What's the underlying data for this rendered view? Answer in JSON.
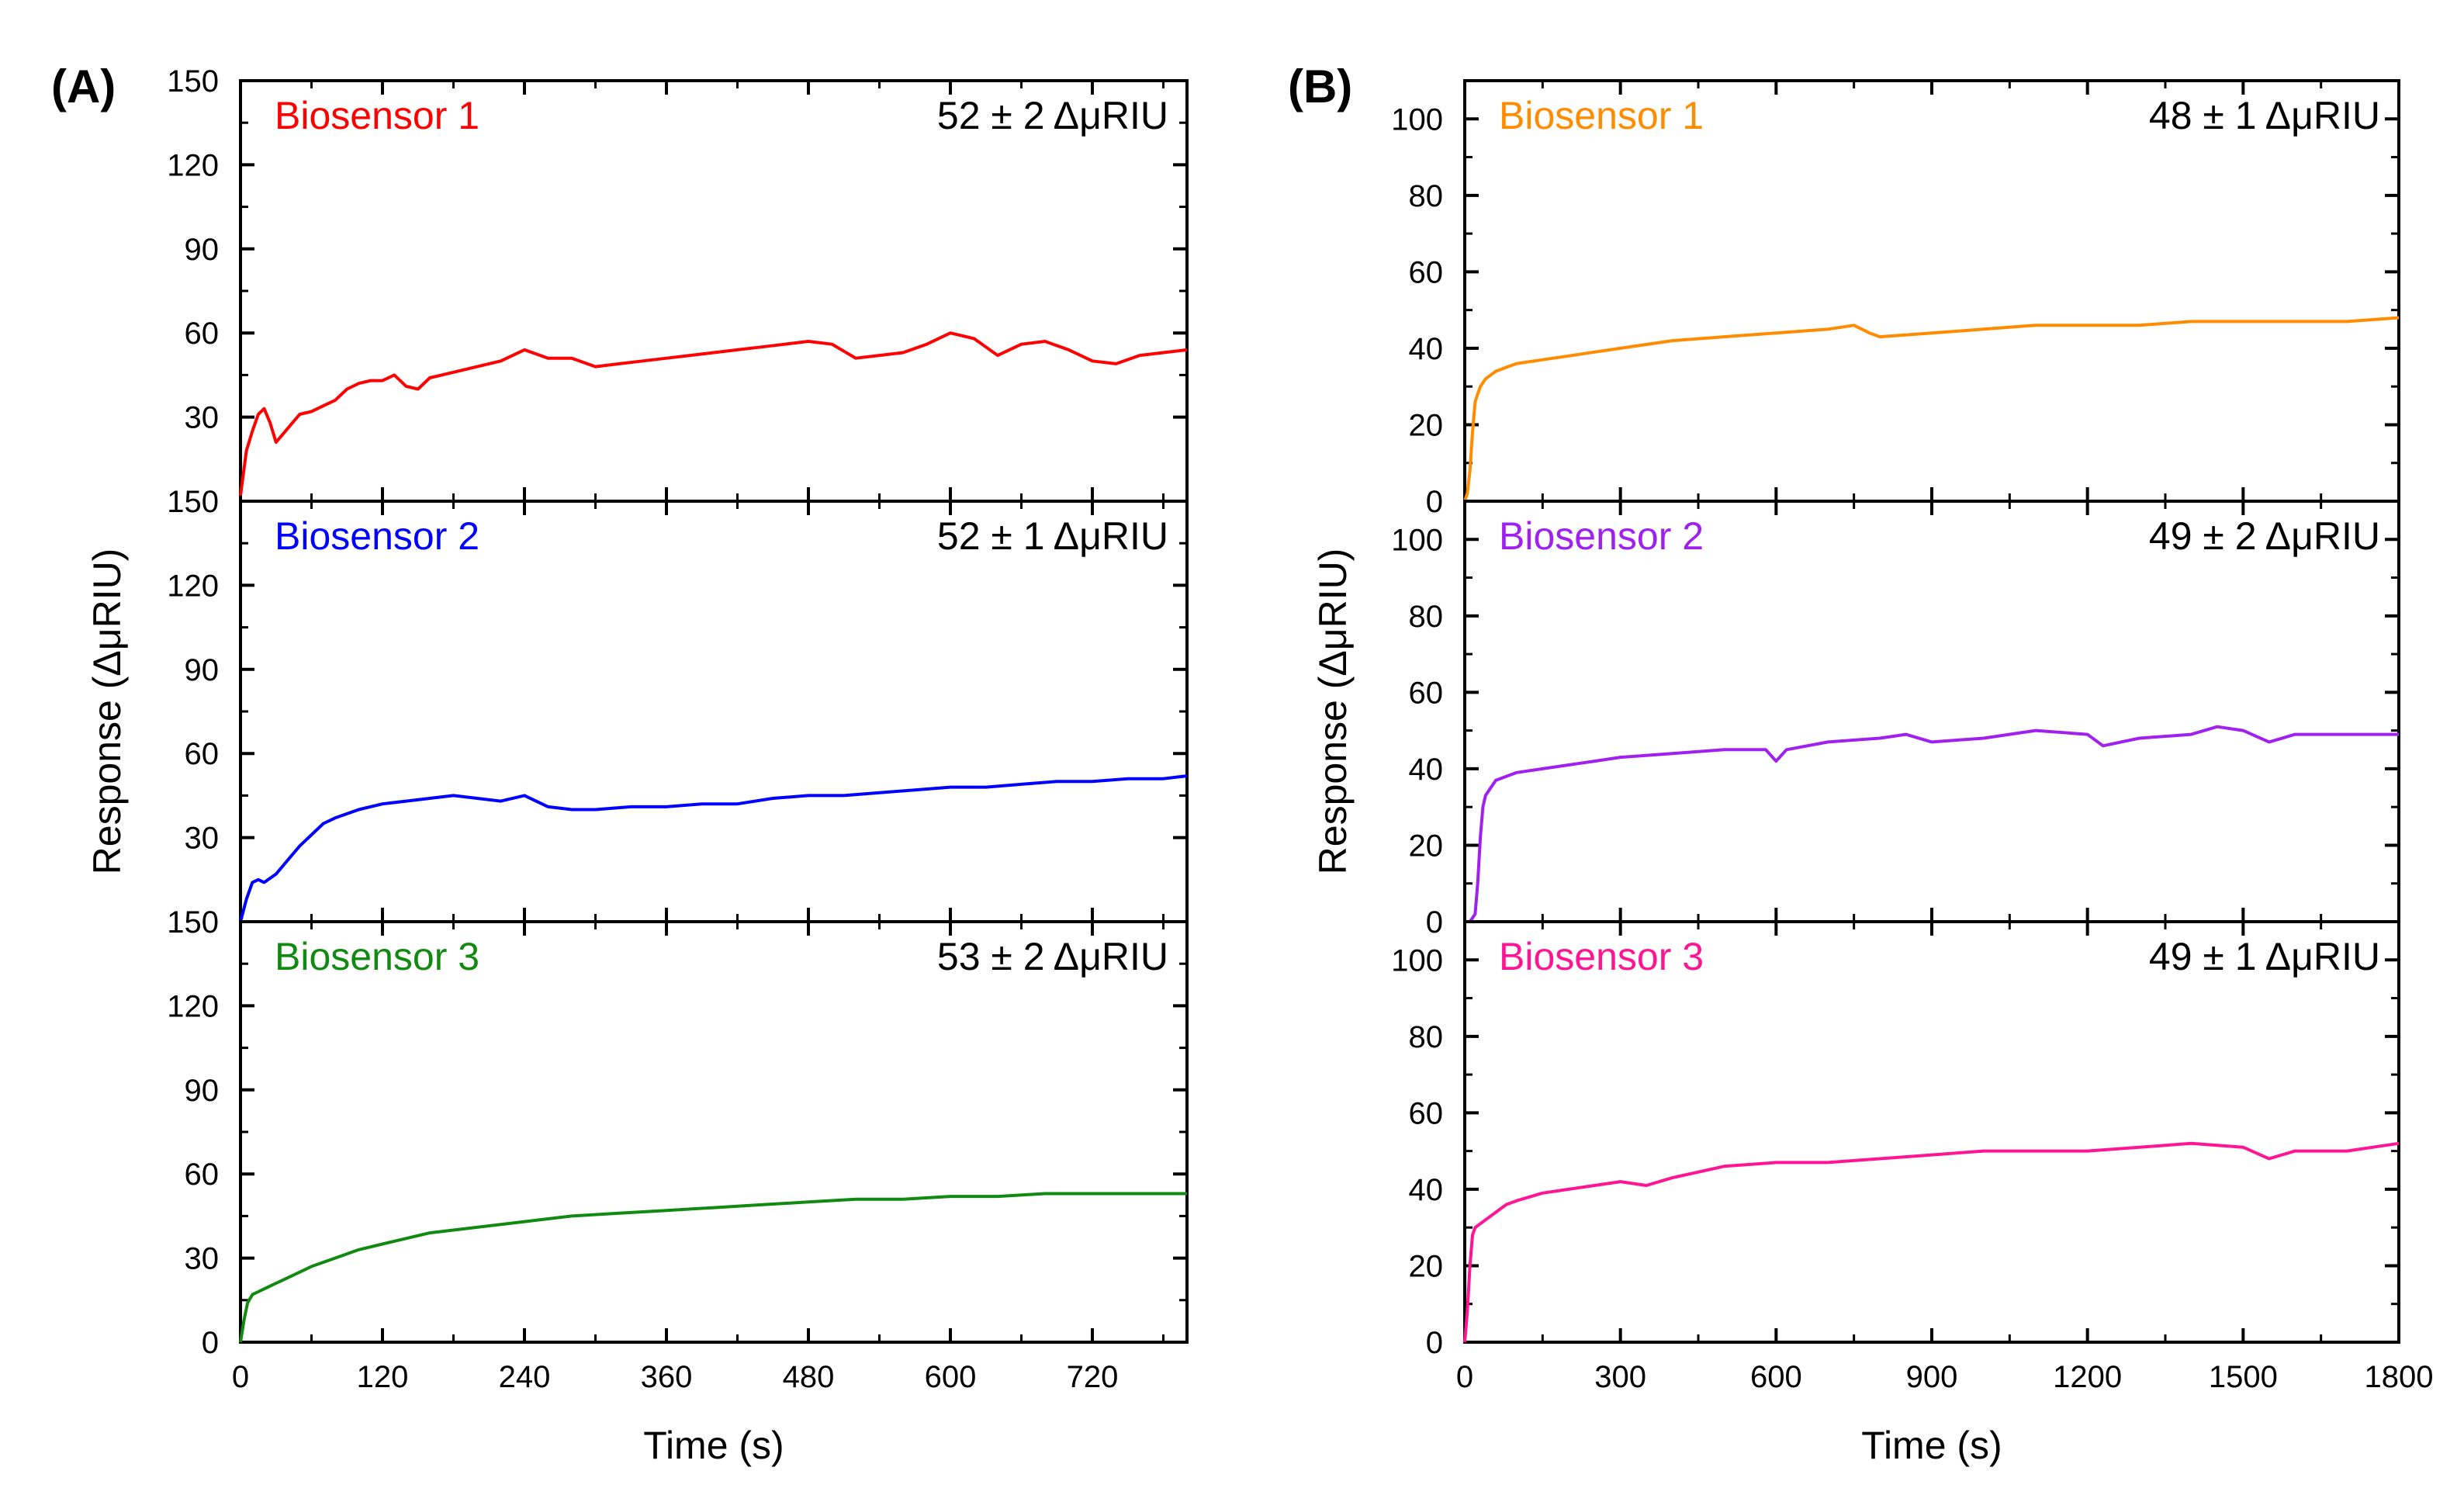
{
  "figure": {
    "panels": [
      "(A)",
      "(B)"
    ]
  },
  "chart_data": [
    {
      "panel": "(A)",
      "type": "line",
      "xlabel": "Time (s)",
      "ylabel": "Response (ΔμRIU)",
      "xlim": [
        0,
        800
      ],
      "xticks": [
        "0",
        "120",
        "240",
        "360",
        "480",
        "600",
        "720"
      ],
      "grid": false,
      "subplots": [
        {
          "series_name": "Biosensor 1",
          "color": "#ff0000",
          "annotation": "52 ± 2 ΔμRIU",
          "ylim": [
            0,
            150
          ],
          "yticks": [
            "150",
            "120",
            "90",
            "60",
            "30"
          ],
          "x": [
            0,
            5,
            10,
            15,
            20,
            25,
            30,
            40,
            50,
            60,
            70,
            80,
            90,
            100,
            110,
            120,
            130,
            140,
            150,
            160,
            170,
            180,
            200,
            220,
            240,
            260,
            280,
            300,
            320,
            340,
            360,
            380,
            400,
            420,
            440,
            460,
            480,
            500,
            520,
            540,
            560,
            580,
            600,
            620,
            640,
            660,
            680,
            700,
            720,
            740,
            760,
            780,
            800
          ],
          "y": [
            2,
            18,
            25,
            31,
            33,
            28,
            21,
            26,
            31,
            32,
            34,
            36,
            40,
            42,
            43,
            43,
            45,
            41,
            40,
            44,
            45,
            46,
            48,
            50,
            54,
            51,
            51,
            48,
            49,
            50,
            51,
            52,
            53,
            54,
            55,
            56,
            57,
            56,
            51,
            52,
            53,
            56,
            60,
            58,
            52,
            56,
            57,
            54,
            50,
            49,
            52,
            53,
            54
          ]
        },
        {
          "series_name": "Biosensor 2",
          "color": "#0000ff",
          "annotation": "52 ± 1 ΔμRIU",
          "ylim": [
            0,
            150
          ],
          "yticks": [
            "150",
            "120",
            "90",
            "60",
            "30"
          ],
          "x": [
            0,
            5,
            10,
            15,
            20,
            30,
            40,
            50,
            60,
            70,
            80,
            100,
            120,
            140,
            160,
            180,
            200,
            220,
            240,
            260,
            280,
            300,
            330,
            360,
            390,
            420,
            450,
            480,
            510,
            540,
            570,
            600,
            630,
            660,
            690,
            720,
            750,
            780,
            800
          ],
          "y": [
            0,
            8,
            14,
            15,
            14,
            17,
            22,
            27,
            31,
            35,
            37,
            40,
            42,
            43,
            44,
            45,
            44,
            43,
            45,
            41,
            40,
            40,
            41,
            41,
            42,
            42,
            44,
            45,
            45,
            46,
            47,
            48,
            48,
            49,
            50,
            50,
            51,
            51,
            52
          ]
        },
        {
          "series_name": "Biosensor 3",
          "color": "#108a10",
          "annotation": "53 ± 2 ΔμRIU",
          "ylim": [
            0,
            150
          ],
          "yticks": [
            "150",
            "120",
            "90",
            "60",
            "30",
            "0"
          ],
          "x": [
            0,
            3,
            6,
            10,
            15,
            20,
            30,
            40,
            50,
            60,
            80,
            100,
            120,
            140,
            160,
            180,
            200,
            240,
            280,
            320,
            360,
            400,
            440,
            480,
            520,
            560,
            600,
            640,
            680,
            720,
            760,
            800
          ],
          "y": [
            0,
            8,
            14,
            17,
            18,
            19,
            21,
            23,
            25,
            27,
            30,
            33,
            35,
            37,
            39,
            40,
            41,
            43,
            45,
            46,
            47,
            48,
            49,
            50,
            51,
            51,
            52,
            52,
            53,
            53,
            53,
            53
          ]
        }
      ]
    },
    {
      "panel": "(B)",
      "type": "line",
      "xlabel": "Time (s)",
      "ylabel": "Response (ΔμRIU)",
      "xlim": [
        0,
        1800
      ],
      "xticks": [
        "0",
        "300",
        "600",
        "900",
        "1200",
        "1500",
        "1800"
      ],
      "grid": false,
      "subplots": [
        {
          "series_name": "Biosensor 1",
          "color": "#ff8c00",
          "annotation": "48 ± 1 ΔμRIU",
          "ylim": [
            0,
            110
          ],
          "yticks": [
            "100",
            "80",
            "60",
            "40",
            "20",
            "0"
          ],
          "x": [
            0,
            5,
            10,
            15,
            20,
            25,
            30,
            40,
            60,
            80,
            100,
            150,
            200,
            250,
            300,
            400,
            500,
            600,
            700,
            750,
            780,
            800,
            900,
            1000,
            1100,
            1200,
            1300,
            1400,
            1500,
            1600,
            1700,
            1800
          ],
          "y": [
            0,
            2,
            8,
            18,
            26,
            28,
            30,
            32,
            34,
            35,
            36,
            37,
            38,
            39,
            40,
            42,
            43,
            44,
            45,
            46,
            44,
            43,
            44,
            45,
            46,
            46,
            46,
            47,
            47,
            47,
            47,
            48
          ]
        },
        {
          "series_name": "Biosensor 2",
          "color": "#a020f0",
          "annotation": "49 ± 2 ΔμRIU",
          "ylim": [
            0,
            110
          ],
          "yticks": [
            "100",
            "80",
            "60",
            "40",
            "20",
            "0"
          ],
          "x": [
            0,
            10,
            20,
            25,
            30,
            35,
            40,
            50,
            60,
            80,
            100,
            150,
            200,
            250,
            300,
            400,
            500,
            580,
            600,
            620,
            700,
            800,
            850,
            900,
            1000,
            1100,
            1200,
            1230,
            1300,
            1400,
            1450,
            1500,
            1550,
            1600,
            1700,
            1800
          ],
          "y": [
            0,
            0,
            2,
            10,
            22,
            30,
            33,
            35,
            37,
            38,
            39,
            40,
            41,
            42,
            43,
            44,
            45,
            45,
            42,
            45,
            47,
            48,
            49,
            47,
            48,
            50,
            49,
            46,
            48,
            49,
            51,
            50,
            47,
            49,
            49,
            49
          ]
        },
        {
          "series_name": "Biosensor 3",
          "color": "#ff1493",
          "annotation": "49 ± 1 ΔμRIU",
          "ylim": [
            0,
            110
          ],
          "yticks": [
            "100",
            "80",
            "60",
            "40",
            "20",
            "0"
          ],
          "x": [
            0,
            5,
            10,
            15,
            20,
            30,
            40,
            60,
            80,
            100,
            150,
            200,
            250,
            300,
            350,
            400,
            500,
            600,
            700,
            800,
            900,
            1000,
            1100,
            1200,
            1300,
            1400,
            1500,
            1550,
            1600,
            1700,
            1750,
            1800
          ],
          "y": [
            0,
            8,
            20,
            28,
            30,
            31,
            32,
            34,
            36,
            37,
            39,
            40,
            41,
            42,
            41,
            43,
            46,
            47,
            47,
            48,
            49,
            50,
            50,
            50,
            51,
            52,
            51,
            48,
            50,
            50,
            51,
            52
          ]
        }
      ]
    }
  ]
}
